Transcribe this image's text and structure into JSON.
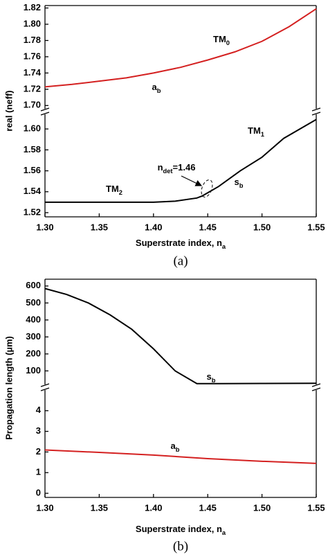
{
  "chart_data": [
    {
      "type": "line",
      "caption": "(a)",
      "x_label": {
        "text": "Superstrate index, n",
        "sub": "a"
      },
      "y_label": "real (neff)",
      "xlim": [
        1.3,
        1.55
      ],
      "xticks": [
        {
          "value": 1.3,
          "label": "1.30"
        },
        1.35,
        {
          "value": 1.4,
          "label": "1.40"
        },
        1.45,
        {
          "value": 1.5,
          "label": "1.50"
        },
        1.55
      ],
      "axes": [
        {
          "ylim": [
            1.696,
            1.823
          ],
          "yticks": [
            {
              "value": 1.7,
              "label": "1.70"
            },
            1.72,
            1.74,
            1.76,
            1.78,
            {
              "value": 1.8,
              "label": "1.80"
            },
            1.82
          ],
          "series": [
            {
              "color": "#d42020",
              "x": [
                1.3,
                1.325,
                1.35,
                1.375,
                1.4,
                1.425,
                1.45,
                1.475,
                1.5,
                1.525,
                1.55
              ],
              "values": [
                1.723,
                1.726,
                1.73,
                1.734,
                1.74,
                1.747,
                1.756,
                1.766,
                1.779,
                1.797,
                1.819
              ]
            }
          ]
        },
        {
          "ylim": [
            1.516,
            1.614
          ],
          "yticks": [
            1.52,
            1.54,
            1.56,
            1.58,
            {
              "value": 1.6,
              "label": "1.60"
            }
          ],
          "series": [
            {
              "color": "#000000",
              "x": [
                1.3,
                1.35,
                1.4,
                1.42,
                1.44,
                1.445,
                1.46,
                1.48,
                1.5,
                1.52,
                1.55
              ],
              "values": [
                1.53,
                1.53,
                1.53,
                1.531,
                1.534,
                1.536,
                1.545,
                1.56,
                1.573,
                1.591,
                1.609
              ]
            }
          ]
        }
      ],
      "annotations": [
        {
          "text": "TM",
          "sub": "0",
          "color": "#d42020"
        },
        {
          "text": "a",
          "sub": "b",
          "color": "#d42020"
        },
        {
          "text": "TM",
          "sub": "1",
          "color": "#000000"
        },
        {
          "text": "s",
          "sub": "b",
          "color": "#000000"
        },
        {
          "text": "TM",
          "sub": "2",
          "color": "#000000"
        },
        {
          "text": "n",
          "sub": "det",
          "after": "=1.46",
          "color": "#000000"
        }
      ]
    },
    {
      "type": "line",
      "caption": "(b)",
      "x_label": {
        "text": "Superstrate index, n",
        "sub": "a"
      },
      "y_label": "Propagation length (µm)",
      "xlim": [
        1.3,
        1.55
      ],
      "xticks": [
        {
          "value": 1.3,
          "label": "1.30"
        },
        1.35,
        {
          "value": 1.4,
          "label": "1.40"
        },
        1.45,
        {
          "value": 1.5,
          "label": "1.50"
        },
        1.55
      ],
      "axes": [
        {
          "ylim": [
            20,
            640
          ],
          "yticks": [
            100,
            200,
            300,
            400,
            500,
            600
          ],
          "series": [
            {
              "color": "#000000",
              "x": [
                1.3,
                1.32,
                1.34,
                1.36,
                1.38,
                1.4,
                1.42,
                1.44,
                1.46,
                1.5,
                1.55
              ],
              "values": [
                585,
                550,
                500,
                430,
                345,
                230,
                100,
                25,
                25,
                26,
                27
              ]
            }
          ]
        },
        {
          "ylim": [
            -0.2,
            5
          ],
          "yticks": [
            0,
            1,
            2,
            3,
            4
          ],
          "series": [
            {
              "color": "#d42020",
              "x": [
                1.3,
                1.35,
                1.4,
                1.45,
                1.5,
                1.55
              ],
              "values": [
                2.1,
                1.98,
                1.85,
                1.68,
                1.55,
                1.45
              ]
            }
          ]
        }
      ],
      "annotations": [
        {
          "text": "s",
          "sub": "b",
          "color": "#000000"
        },
        {
          "text": "a",
          "sub": "b",
          "color": "#d42020"
        }
      ]
    }
  ]
}
